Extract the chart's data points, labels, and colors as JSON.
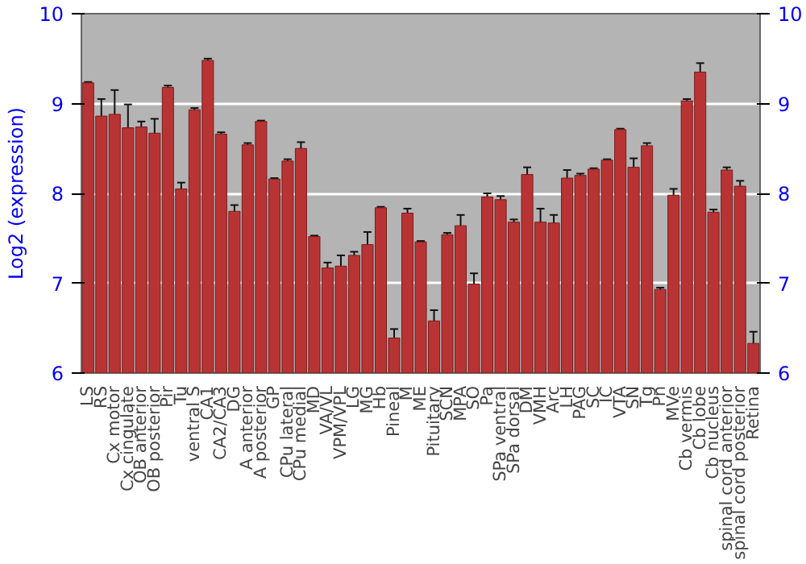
{
  "chart_data": {
    "type": "bar",
    "ylabel": "Log2 (expression)",
    "categories": [
      "LS",
      "RS",
      "Cx motor",
      "Cx cingulate",
      "OB anterior",
      "OB posterior",
      "Pir",
      "Tu",
      "ventral S",
      "CA1",
      "CA2/CA3",
      "DG",
      "A anterior",
      "A posterior",
      "GP",
      "CPu lateral",
      "CPu medial",
      "MD",
      "VA/VL",
      "VPM/VPL",
      "LG",
      "MG",
      "Hb",
      "Pineal",
      "M",
      "ME",
      "Pituitary",
      "SCN",
      "MPA",
      "SO",
      "Pa",
      "SPa ventral",
      "SPa dorsal",
      "DM",
      "VMH",
      "Arc",
      "LH",
      "PAG",
      "SC",
      "IC",
      "VTA",
      "SN",
      "Tg",
      "Pn",
      "MVe",
      "Cb vermis",
      "Cb lobe",
      "Cb nucleus",
      "spinal cord anterior",
      "spinal cord posterior",
      "Retina"
    ],
    "values": [
      9.23,
      8.86,
      8.88,
      8.73,
      8.74,
      8.67,
      9.18,
      8.05,
      8.93,
      9.48,
      8.66,
      7.8,
      8.54,
      8.8,
      8.16,
      8.36,
      8.5,
      7.52,
      7.17,
      7.19,
      7.31,
      7.43,
      7.84,
      6.39,
      7.78,
      7.46,
      6.58,
      7.54,
      7.64,
      6.99,
      7.96,
      7.93,
      7.68,
      8.21,
      7.68,
      7.67,
      8.17,
      8.2,
      8.27,
      8.37,
      8.71,
      8.29,
      8.53,
      6.93,
      7.98,
      9.03,
      9.35,
      7.79,
      8.26,
      8.08,
      6.33
    ],
    "errors": [
      0.01,
      0.19,
      0.27,
      0.26,
      0.06,
      0.16,
      0.02,
      0.07,
      0.02,
      0.02,
      0.02,
      0.07,
      0.02,
      0.01,
      0.01,
      0.02,
      0.07,
      0.01,
      0.06,
      0.12,
      0.04,
      0.14,
      0.01,
      0.1,
      0.05,
      0.01,
      0.12,
      0.02,
      0.12,
      0.12,
      0.04,
      0.04,
      0.03,
      0.08,
      0.15,
      0.09,
      0.09,
      0.02,
      0.01,
      0.01,
      0.01,
      0.1,
      0.03,
      0.02,
      0.07,
      0.02,
      0.1,
      0.03,
      0.03,
      0.06,
      0.13
    ],
    "color": "#b83434",
    "ylim": [
      6,
      10
    ],
    "yticks": [
      6,
      7,
      8,
      9,
      10
    ],
    "y2lim": [
      6,
      10
    ],
    "y2ticks": [
      6,
      7,
      8,
      9,
      10
    ],
    "grid": "y"
  }
}
